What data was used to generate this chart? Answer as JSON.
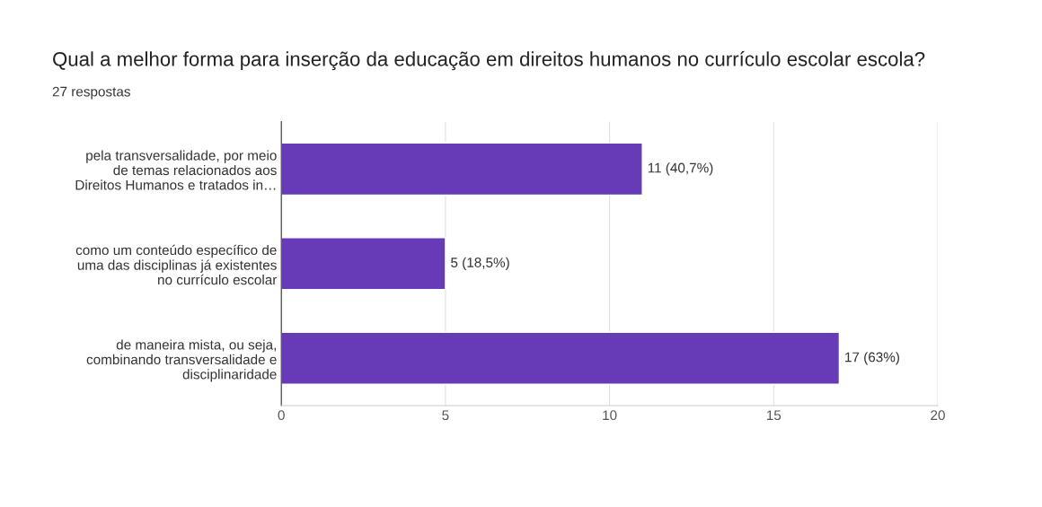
{
  "chart_data": {
    "type": "bar",
    "orientation": "horizontal",
    "title": "Qual a melhor forma para inserção da educação em direitos humanos no currículo escolar escola?",
    "subtitle": "27 respostas",
    "categories": [
      "pela transversalidade, por meio\nde temas relacionados aos\nDireitos Humanos e tratados in…",
      "como um conteúdo específico de\numa das disciplinas já existentes\nno currículo escolar",
      "de maneira mista, ou seja,\ncombinando transversalidade e\ndisciplinaridade"
    ],
    "values": [
      11,
      5,
      17
    ],
    "value_labels": [
      "11 (40,7%)",
      "5 (18,5%)",
      "17 (63%)"
    ],
    "color": "#673ab7",
    "xlim": [
      0,
      20
    ],
    "xticks": [
      0,
      5,
      10,
      15,
      20
    ],
    "grid": "x",
    "legend": false
  }
}
